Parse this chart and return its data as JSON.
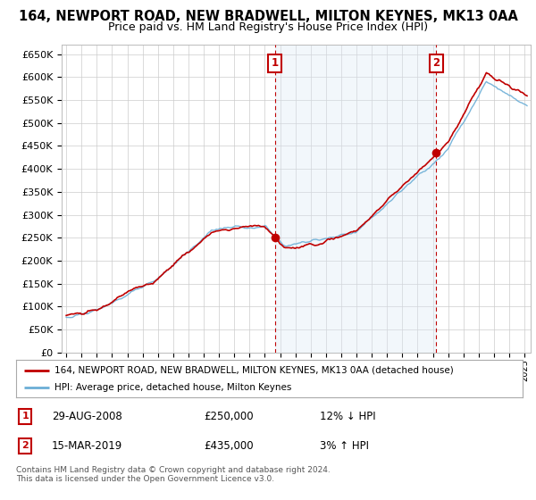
{
  "title": "164, NEWPORT ROAD, NEW BRADWELL, MILTON KEYNES, MK13 0AA",
  "subtitle": "Price paid vs. HM Land Registry's House Price Index (HPI)",
  "ylim": [
    0,
    670000
  ],
  "yticks": [
    0,
    50000,
    100000,
    150000,
    200000,
    250000,
    300000,
    350000,
    400000,
    450000,
    500000,
    550000,
    600000,
    650000
  ],
  "ytick_labels": [
    "£0",
    "£50K",
    "£100K",
    "£150K",
    "£200K",
    "£250K",
    "£300K",
    "£350K",
    "£400K",
    "£450K",
    "£500K",
    "£550K",
    "£600K",
    "£650K"
  ],
  "hpi_color": "#6baed6",
  "price_color": "#c00000",
  "shade_color": "#dce9f5",
  "marker1_date": 2008.66,
  "marker1_price": 250000,
  "marker1_label": "29-AUG-2008",
  "marker1_amount": "£250,000",
  "marker1_hpi_text": "12% ↓ HPI",
  "marker2_date": 2019.21,
  "marker2_price": 435000,
  "marker2_label": "15-MAR-2019",
  "marker2_amount": "£435,000",
  "marker2_hpi_text": "3% ↑ HPI",
  "legend_line1": "164, NEWPORT ROAD, NEW BRADWELL, MILTON KEYNES, MK13 0AA (detached house)",
  "legend_line2": "HPI: Average price, detached house, Milton Keynes",
  "footnote": "Contains HM Land Registry data © Crown copyright and database right 2024.\nThis data is licensed under the Open Government Licence v3.0.",
  "plot_bg": "#ffffff",
  "grid_color": "#cccccc",
  "title_fontsize": 10.5,
  "subtitle_fontsize": 9
}
